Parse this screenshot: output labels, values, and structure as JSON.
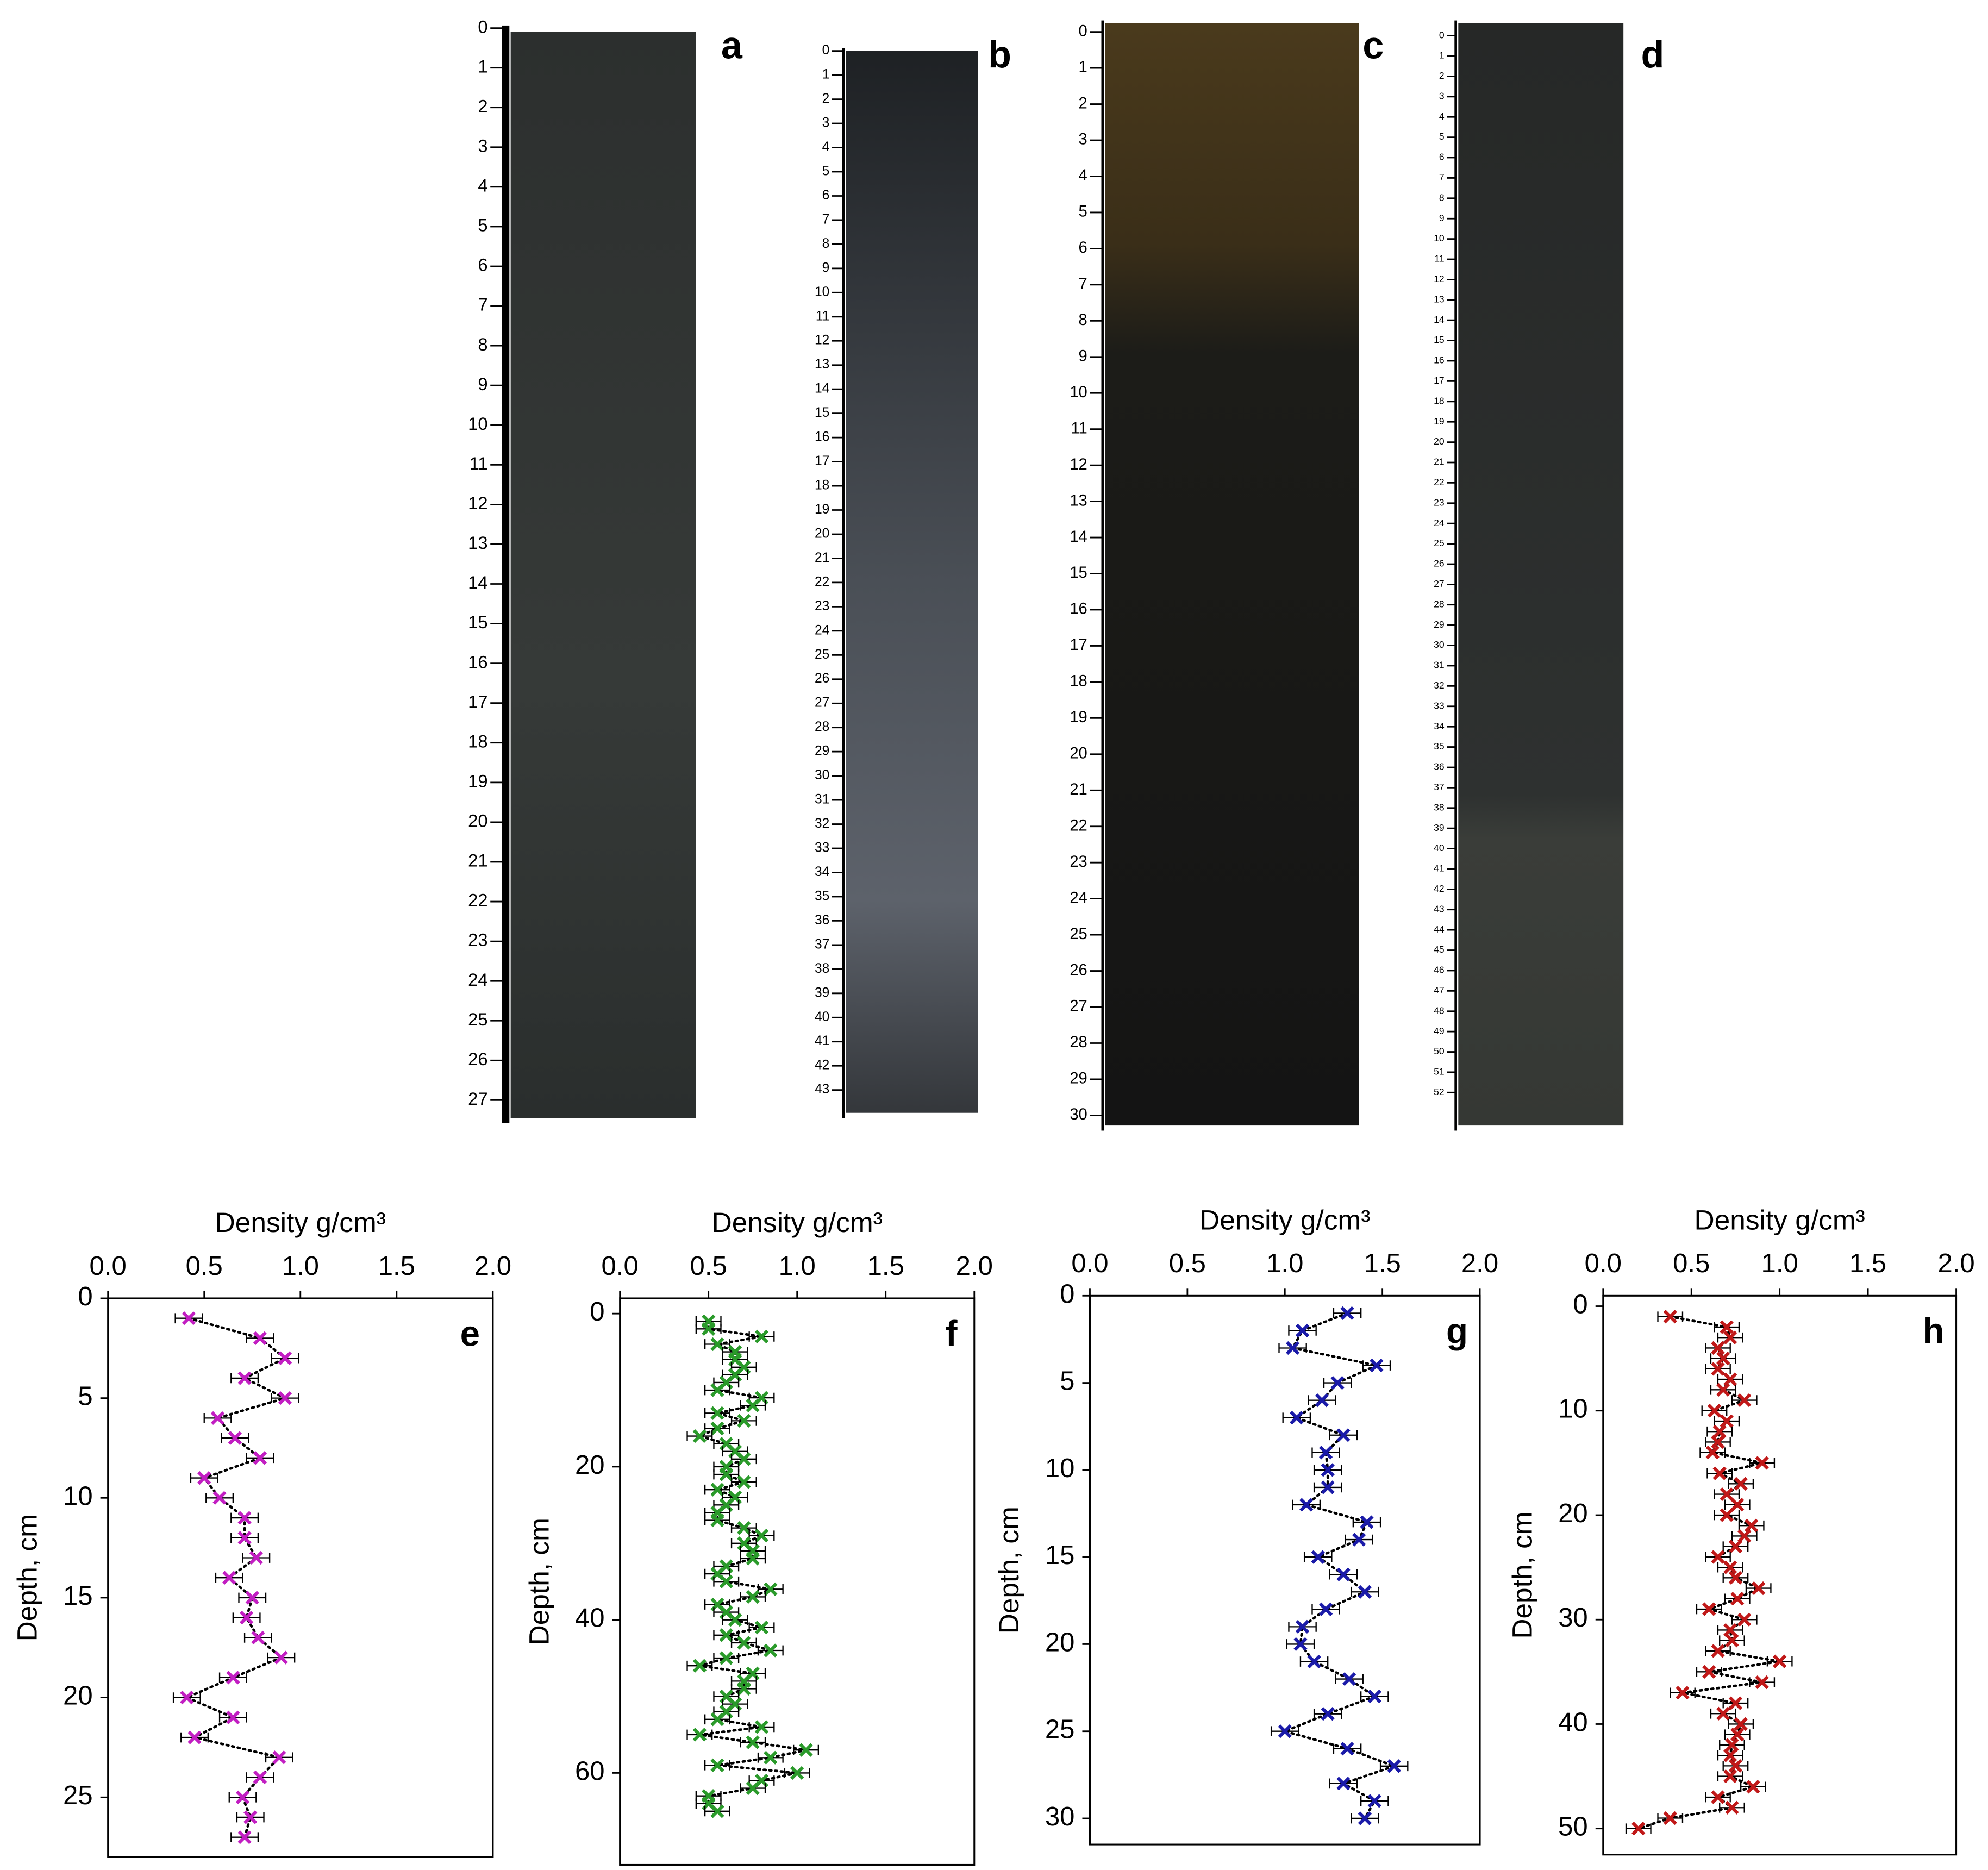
{
  "cores": [
    {
      "label": "a",
      "ruler": [
        0,
        1,
        2,
        3,
        4,
        5,
        6,
        7,
        8,
        9,
        10,
        11,
        12,
        13,
        14,
        15,
        16,
        17,
        18,
        19,
        20,
        21,
        22,
        23,
        24,
        25,
        26,
        27
      ]
    },
    {
      "label": "b",
      "ruler": [
        0,
        1,
        2,
        3,
        4,
        5,
        6,
        7,
        8,
        9,
        10,
        11,
        12,
        13,
        14,
        15,
        16,
        17,
        18,
        19,
        20,
        21,
        22,
        23,
        24,
        25,
        26,
        27,
        28,
        29,
        30,
        31,
        32,
        33,
        34,
        35,
        36,
        37,
        38,
        39,
        40,
        41,
        42,
        43
      ]
    },
    {
      "label": "c",
      "ruler": [
        0,
        1,
        2,
        3,
        4,
        5,
        6,
        7,
        8,
        9,
        10,
        11,
        12,
        13,
        14,
        15,
        16,
        17,
        18,
        19,
        20,
        21,
        22,
        23,
        24,
        25,
        26,
        27,
        28,
        29,
        30
      ]
    },
    {
      "label": "d",
      "ruler": [
        0,
        1,
        2,
        3,
        4,
        5,
        6,
        7,
        8,
        9,
        10,
        11,
        12,
        13,
        14,
        15,
        16,
        17,
        18,
        19,
        20,
        21,
        22,
        23,
        24,
        25,
        26,
        27,
        28,
        29,
        30,
        31,
        32,
        33,
        34,
        35,
        36,
        37,
        38,
        39,
        40,
        41,
        42,
        43,
        44,
        45,
        46,
        47,
        48,
        49,
        50,
        51,
        52
      ]
    }
  ],
  "chart_data": [
    {
      "type": "scatter",
      "panel": "e",
      "xlabel": "Density g/cm³",
      "ylabel": "Depth, cm",
      "color": "#c21ec2",
      "xlim": [
        0,
        2
      ],
      "xticks": [
        {
          "value": 0,
          "label": "0.0"
        },
        {
          "value": 0.5,
          "label": "0.5"
        },
        {
          "value": 1,
          "label": "1.0"
        },
        {
          "value": 1.5,
          "label": "1.5"
        },
        {
          "value": 2,
          "label": "2.0"
        }
      ],
      "ylim": [
        0,
        28
      ],
      "yticks": [
        0,
        5,
        10,
        15,
        20,
        25
      ],
      "error": 0.07,
      "depths": [
        1,
        2,
        3,
        4,
        5,
        6,
        7,
        8,
        9,
        10,
        11,
        12,
        13,
        14,
        15,
        16,
        17,
        18,
        19,
        20,
        21,
        22,
        23,
        24,
        25,
        26,
        27
      ],
      "values": [
        0.42,
        0.79,
        0.92,
        0.71,
        0.92,
        0.57,
        0.66,
        0.79,
        0.5,
        0.58,
        0.71,
        0.71,
        0.77,
        0.63,
        0.75,
        0.72,
        0.78,
        0.9,
        0.65,
        0.41,
        0.65,
        0.45,
        0.89,
        0.79,
        0.7,
        0.74,
        0.71
      ]
    },
    {
      "type": "scatter",
      "panel": "f",
      "xlabel": "Density g/cm³",
      "ylabel": "Depth, cm",
      "color": "#2a9a2a",
      "xlim": [
        0,
        2
      ],
      "xticks": [
        {
          "value": 0,
          "label": "0.0"
        },
        {
          "value": 0.5,
          "label": "0.5"
        },
        {
          "value": 1,
          "label": "1.0"
        },
        {
          "value": 1.5,
          "label": "1.5"
        },
        {
          "value": 2,
          "label": "2.0"
        }
      ],
      "ylim": [
        -2,
        72
      ],
      "yticks": [
        0,
        20,
        40,
        60
      ],
      "error": 0.07,
      "depths": [
        1,
        2,
        3,
        4,
        5,
        6,
        7,
        8,
        9,
        10,
        11,
        12,
        13,
        14,
        15,
        16,
        17,
        18,
        19,
        20,
        21,
        22,
        23,
        24,
        25,
        26,
        27,
        28,
        29,
        30,
        31,
        32,
        33,
        34,
        35,
        36,
        37,
        38,
        39,
        40,
        41,
        42,
        43,
        44,
        45,
        46,
        47,
        48,
        49,
        50,
        51,
        52,
        53,
        54,
        55,
        56,
        57,
        58,
        59,
        60,
        61,
        62,
        63,
        64,
        65
      ],
      "values": [
        0.5,
        0.5,
        0.8,
        0.55,
        0.65,
        0.65,
        0.7,
        0.65,
        0.6,
        0.55,
        0.8,
        0.75,
        0.55,
        0.7,
        0.55,
        0.45,
        0.6,
        0.65,
        0.7,
        0.6,
        0.6,
        0.7,
        0.55,
        0.65,
        0.6,
        0.55,
        0.55,
        0.7,
        0.8,
        0.7,
        0.75,
        0.75,
        0.6,
        0.55,
        0.6,
        0.85,
        0.75,
        0.55,
        0.6,
        0.65,
        0.8,
        0.6,
        0.7,
        0.85,
        0.6,
        0.45,
        0.75,
        0.7,
        0.7,
        0.6,
        0.65,
        0.6,
        0.55,
        0.8,
        0.45,
        0.75,
        1.05,
        0.85,
        0.55,
        1.0,
        0.8,
        0.75,
        0.5,
        0.5,
        0.55
      ]
    },
    {
      "type": "scatter",
      "panel": "g",
      "xlabel": "Density g/cm³",
      "ylabel": "Depth, cm",
      "color": "#1a1aa8",
      "xlim": [
        0,
        2
      ],
      "xticks": [
        {
          "value": 0,
          "label": "0.0"
        },
        {
          "value": 0.5,
          "label": "0.5"
        },
        {
          "value": 1,
          "label": "1.0"
        },
        {
          "value": 1.5,
          "label": "1.5"
        },
        {
          "value": 2,
          "label": "2.0"
        }
      ],
      "ylim": [
        0,
        31.5
      ],
      "yticks": [
        0,
        5,
        10,
        15,
        20,
        25,
        30
      ],
      "error": 0.07,
      "depths": [
        1,
        2,
        3,
        4,
        5,
        6,
        7,
        8,
        9,
        10,
        11,
        12,
        13,
        14,
        15,
        16,
        17,
        18,
        19,
        20,
        21,
        22,
        23,
        24,
        25,
        26,
        27,
        28,
        29,
        30
      ],
      "values": [
        1.32,
        1.09,
        1.04,
        1.47,
        1.27,
        1.19,
        1.06,
        1.3,
        1.21,
        1.22,
        1.22,
        1.11,
        1.42,
        1.38,
        1.17,
        1.3,
        1.41,
        1.21,
        1.09,
        1.08,
        1.15,
        1.33,
        1.46,
        1.22,
        1.0,
        1.32,
        1.56,
        1.3,
        1.46,
        1.41
      ]
    },
    {
      "type": "scatter",
      "panel": "h",
      "xlabel": "Density g/cm³",
      "ylabel": "Depth, cm",
      "color": "#c01818",
      "xlim": [
        0,
        2
      ],
      "xticks": [
        {
          "value": 0,
          "label": "0.0"
        },
        {
          "value": 0.5,
          "label": "0.5"
        },
        {
          "value": 1,
          "label": "1.0"
        },
        {
          "value": 1.5,
          "label": "1.5"
        },
        {
          "value": 2,
          "label": "2.0"
        }
      ],
      "ylim": [
        -1,
        52.5
      ],
      "yticks": [
        0,
        10,
        20,
        30,
        40,
        50
      ],
      "error": 0.07,
      "depths": [
        1,
        2,
        3,
        4,
        5,
        6,
        7,
        8,
        9,
        10,
        11,
        12,
        13,
        14,
        15,
        16,
        17,
        18,
        19,
        20,
        21,
        22,
        23,
        24,
        25,
        26,
        27,
        28,
        29,
        30,
        31,
        32,
        33,
        34,
        35,
        36,
        37,
        38,
        39,
        40,
        41,
        42,
        43,
        44,
        45,
        46,
        47,
        48,
        49,
        50
      ],
      "values": [
        0.38,
        0.7,
        0.72,
        0.65,
        0.68,
        0.65,
        0.72,
        0.68,
        0.8,
        0.63,
        0.7,
        0.66,
        0.65,
        0.62,
        0.9,
        0.66,
        0.78,
        0.7,
        0.76,
        0.7,
        0.84,
        0.8,
        0.75,
        0.65,
        0.72,
        0.75,
        0.88,
        0.76,
        0.6,
        0.8,
        0.72,
        0.73,
        0.65,
        1.0,
        0.6,
        0.9,
        0.45,
        0.75,
        0.68,
        0.78,
        0.76,
        0.73,
        0.72,
        0.75,
        0.72,
        0.85,
        0.65,
        0.73,
        0.38,
        0.2
      ]
    }
  ]
}
